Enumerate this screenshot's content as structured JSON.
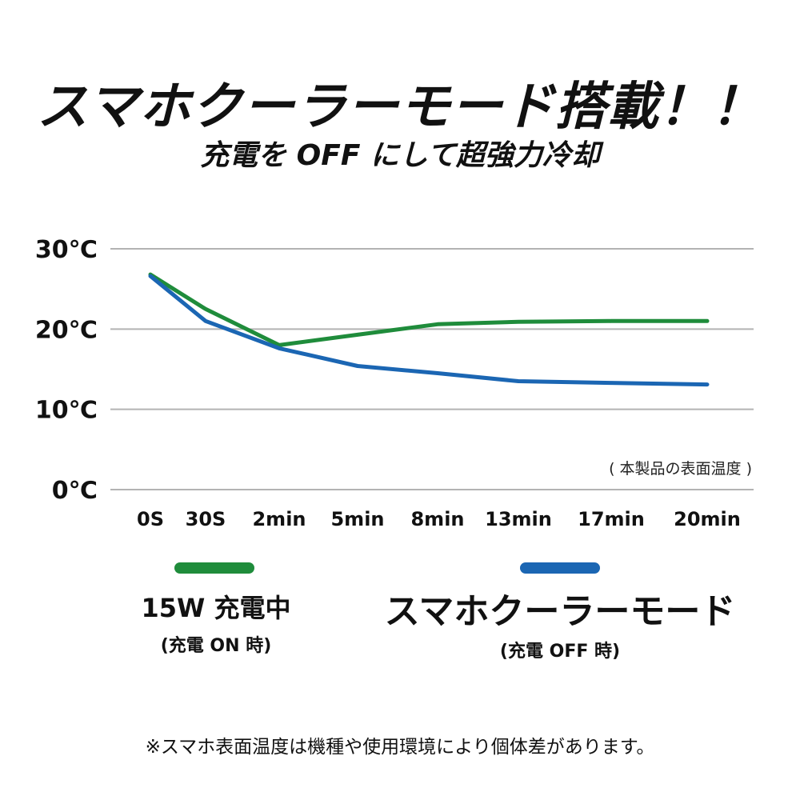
{
  "header": {
    "title": "スマホクーラーモード搭載！！",
    "subtitle": "充電を OFF にして超強力冷却"
  },
  "chart_data": {
    "type": "line",
    "categories": [
      "0S",
      "30S",
      "2min",
      "5min",
      "8min",
      "13min",
      "17min",
      "20min"
    ],
    "yticks": [
      "30℃",
      "20℃",
      "10℃",
      "0℃"
    ],
    "ylim": [
      0,
      30
    ],
    "grid": true,
    "note": "( 本製品の表面温度 )",
    "series": [
      {
        "name": "15W 充電中",
        "color": "#1f8c3b",
        "values": [
          26.8,
          22.5,
          18.0,
          19.3,
          20.6,
          20.9,
          21.0,
          21.0
        ]
      },
      {
        "name": "スマホクーラーモード",
        "color": "#1b66b3",
        "values": [
          26.6,
          21.0,
          17.6,
          15.4,
          14.5,
          13.5,
          13.3,
          13.1
        ]
      }
    ]
  },
  "legend": [
    {
      "label": "15W 充電中",
      "sub": "(充電 ON 時)",
      "color": "#1f8c3b"
    },
    {
      "label": "スマホクーラーモード",
      "sub": "(充電 OFF 時)",
      "color": "#1b66b3"
    }
  ],
  "footnote": "※スマホ表面温度は機種や使用環境により個体差があります。"
}
